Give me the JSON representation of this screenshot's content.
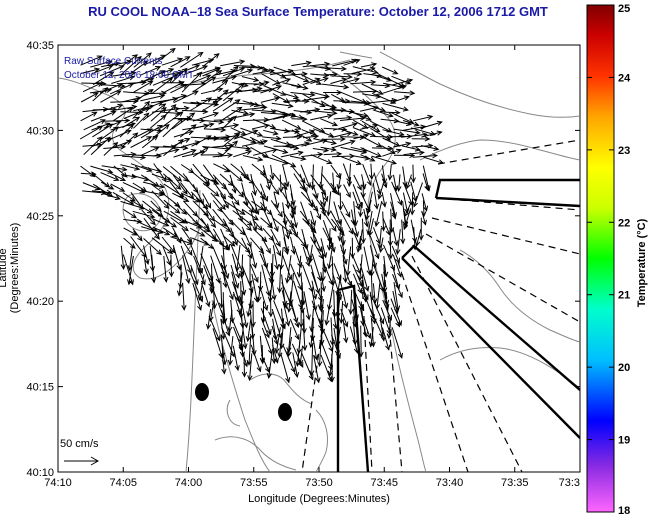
{
  "map": {
    "title": "RU COOL  NOAA–18  Sea Surface Temperature:  October 12, 2006 1712 GMT",
    "xlabel": "Longitude (Degrees:Minutes)",
    "ylabel": "Latitude (Degrees:Minutes)",
    "overlay_line1": "Raw Surface Currents",
    "overlay_line2": "October 12, 2006 18:00 GMT",
    "scale_label": "50 cm/s",
    "x_ticks": [
      "74:10",
      "74:05",
      "74:00",
      "73:55",
      "73:50",
      "73:45",
      "73:40",
      "73:35",
      "73:3"
    ],
    "y_ticks": [
      "40:35",
      "40:30",
      "40:25",
      "40:20",
      "40:15",
      "40:10"
    ]
  },
  "colorbar": {
    "label": "Temperature (°C)",
    "min": 18,
    "max": 25,
    "ticks": [
      "25",
      "24",
      "23",
      "22",
      "21",
      "20",
      "19",
      "18"
    ],
    "colors": [
      "#ff66ff",
      "#8a2be2",
      "#0000ff",
      "#00bfff",
      "#00ffcc",
      "#00ff00",
      "#ccff00",
      "#ffff00",
      "#ffa500",
      "#ff3300",
      "#cc0000",
      "#800000"
    ]
  }
}
